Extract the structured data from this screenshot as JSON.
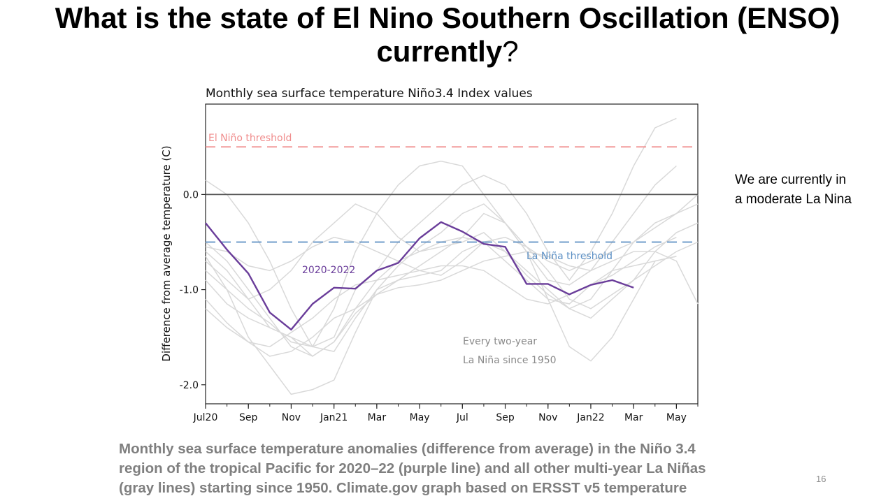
{
  "slide": {
    "title_bold": "What is the state of El Nino Southern Oscillation (ENSO) currently",
    "title_plain": "?",
    "side_note_lines": [
      "We are currently in",
      "a moderate La Nina"
    ],
    "caption_lines": [
      "Monthly sea surface temperature anomalies (difference from average) in the Niño 3.4",
      "region of the tropical Pacific for 2020–22 (purple line) and all other multi-year La Niñas",
      "(gray lines) starting since 1950. Climate.gov graph based on ERSST v5 temperature"
    ],
    "page_number": "16"
  },
  "chart_data": {
    "type": "line",
    "title": "Monthly sea surface temperature Niño3.4 Index values",
    "xlabel": "",
    "ylabel": "Difference from average temperature (C)",
    "x_tick_labels": [
      "Jul20",
      "Sep",
      "Nov",
      "Jan21",
      "Mar",
      "May",
      "Jul",
      "Sep",
      "Nov",
      "Jan22",
      "Mar",
      "May"
    ],
    "x_tick_month_index": [
      0,
      2,
      4,
      6,
      8,
      10,
      12,
      14,
      16,
      18,
      20,
      22
    ],
    "x_months": 24,
    "y_ticks": [
      0.0,
      -1.0,
      -2.0
    ],
    "y_tick_labels": [
      "0.0",
      "-1.0",
      "-2.0"
    ],
    "ylim": [
      -2.2,
      0.95
    ],
    "grid": false,
    "reference_lines": [
      {
        "label": "El Niño threshold",
        "y": 0.5,
        "color": "#f08d8d"
      },
      {
        "label": "La Niña threshold",
        "y": -0.5,
        "color": "#5b8fc4"
      },
      {
        "label": "",
        "y": 0.0,
        "color": "#555555"
      }
    ],
    "annotations": [
      {
        "text": "2020-2022",
        "color": "#6a3d9a"
      },
      {
        "text": "Every two-year",
        "color": "#8a8a8a"
      },
      {
        "text": "La Niña since 1950",
        "color": "#8a8a8a"
      }
    ],
    "highlight_color": "#6a3d9a",
    "background_color": "#d9d9d9",
    "series": [
      {
        "name": "2020-2022",
        "highlight": true,
        "values": [
          -0.3,
          -0.58,
          -0.83,
          -1.24,
          -1.42,
          -1.15,
          -0.98,
          -0.99,
          -0.8,
          -0.72,
          -0.46,
          -0.29,
          -0.39,
          -0.52,
          -0.55,
          -0.94,
          -0.94,
          -1.05,
          -0.95,
          -0.9,
          -0.98
        ]
      },
      {
        "values": [
          0.15,
          0.0,
          -0.3,
          -0.7,
          -1.2,
          -1.6,
          -1.5,
          -1.0,
          -0.8,
          -0.5,
          -0.3,
          -0.1,
          0.1,
          0.2,
          0.1,
          -0.2,
          -0.6,
          -0.9,
          -0.6,
          -0.2,
          0.3,
          0.7,
          0.8
        ]
      },
      {
        "values": [
          -0.6,
          -0.8,
          -1.1,
          -1.4,
          -1.5,
          -1.6,
          -1.2,
          -0.6,
          -0.2,
          0.1,
          0.3,
          0.35,
          0.3,
          0.0,
          -0.3,
          -0.6,
          -0.9,
          -0.95,
          -0.8,
          -0.5,
          -0.2,
          0.1,
          0.3
        ]
      },
      {
        "values": [
          -0.5,
          -0.7,
          -1.0,
          -1.3,
          -1.6,
          -1.7,
          -1.55,
          -1.2,
          -0.9,
          -0.7,
          -0.6,
          -0.5,
          -0.45,
          -0.5,
          -0.6,
          -0.8,
          -1.0,
          -1.2,
          -1.3,
          -1.1,
          -0.9,
          -0.6,
          -0.4,
          -0.3
        ]
      },
      {
        "values": [
          -0.65,
          -1.0,
          -1.5,
          -1.8,
          -2.1,
          -2.05,
          -1.95,
          -1.45,
          -1.0,
          -0.75,
          -0.55,
          -0.4,
          -0.2,
          -0.1,
          -0.3,
          -0.6,
          -1.1,
          -1.6,
          -1.75,
          -1.5,
          -1.1,
          -0.7,
          -0.65
        ]
      },
      {
        "values": [
          -0.8,
          -1.0,
          -1.2,
          -1.35,
          -1.55,
          -1.6,
          -1.65,
          -1.3,
          -1.0,
          -0.9,
          -0.85,
          -0.8,
          -0.6,
          -0.5,
          -0.7,
          -0.9,
          -1.1,
          -1.15,
          -0.95,
          -0.8,
          -0.75,
          -0.7,
          -0.65
        ]
      },
      {
        "values": [
          -1.1,
          -1.35,
          -1.55,
          -1.7,
          -1.65,
          -1.5,
          -1.3,
          -1.2,
          -1.05,
          -0.98,
          -0.95,
          -0.9,
          -0.8,
          -0.7,
          -0.65,
          -0.6,
          -0.65,
          -0.75,
          -0.8,
          -0.7,
          -0.6,
          -0.6,
          -0.7,
          -1.15
        ]
      },
      {
        "values": [
          -0.7,
          -0.9,
          -1.1,
          -1.0,
          -0.8,
          -0.5,
          -0.3,
          -0.1,
          -0.2,
          -0.45,
          -0.6,
          -0.55,
          -0.5,
          -0.4,
          -0.6,
          -0.85,
          -1.05,
          -1.2,
          -1.1,
          -0.8,
          -0.5,
          -0.3,
          -0.2,
          -0.1
        ]
      },
      {
        "values": [
          -1.2,
          -1.4,
          -1.55,
          -1.6,
          -1.45,
          -1.3,
          -1.1,
          -0.95,
          -0.9,
          -0.85,
          -0.8,
          -0.75,
          -0.75,
          -0.8,
          -0.95,
          -1.1,
          -1.15,
          -1.05,
          -0.95,
          -0.85,
          -0.7,
          -0.55,
          -0.45
        ]
      },
      {
        "values": [
          -0.55,
          -0.6,
          -0.75,
          -0.8,
          -0.7,
          -0.55,
          -0.45,
          -0.5,
          -0.6,
          -0.7,
          -0.8,
          -0.85,
          -0.7,
          -0.5,
          -0.45,
          -0.55,
          -0.8,
          -1.1,
          -1.2,
          -1.05,
          -0.9,
          -0.75,
          -0.6,
          -0.5
        ]
      },
      {
        "values": [
          -0.9,
          -1.15,
          -1.3,
          -1.4,
          -1.5,
          -1.7,
          -1.55,
          -1.25,
          -1.05,
          -0.9,
          -0.75,
          -0.6,
          -0.45,
          -0.2,
          -0.3,
          -0.55,
          -0.7,
          -0.8,
          -0.7,
          -0.6,
          -0.5,
          -0.35,
          -0.2,
          0.0
        ]
      }
    ]
  }
}
